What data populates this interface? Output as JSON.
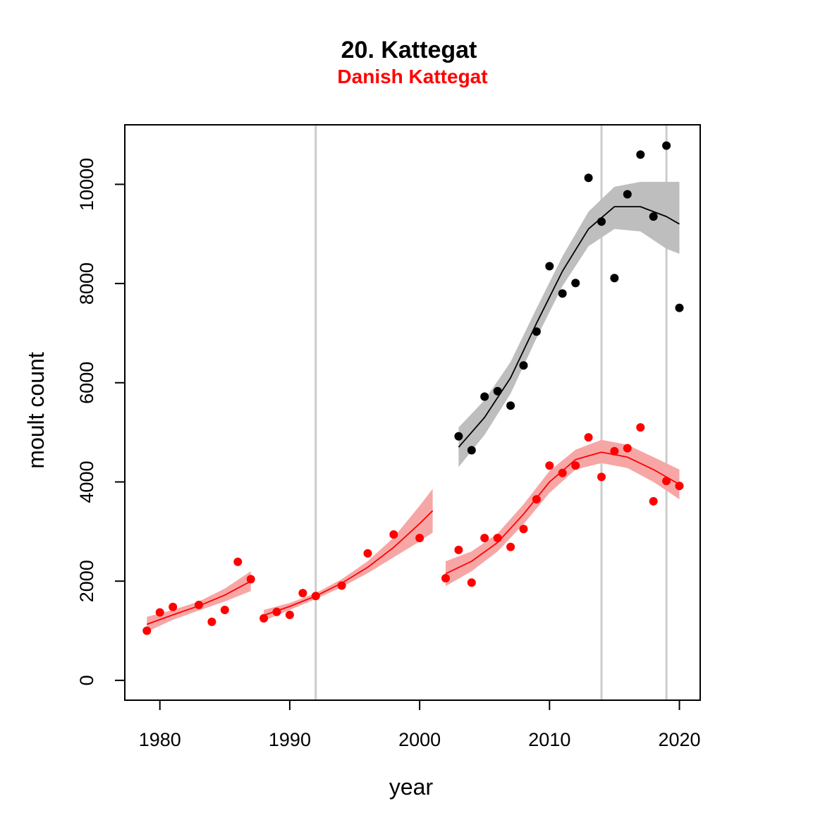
{
  "chart_data": {
    "type": "scatter",
    "title": "20. Kattegat",
    "subtitle": "Danish Kattegat",
    "xlabel": "year",
    "ylabel": "moult count",
    "xlim": [
      1977.3,
      2021.6
    ],
    "ylim": [
      -400,
      11200
    ],
    "x_ticks": [
      1980,
      1990,
      2000,
      2010,
      2020
    ],
    "y_ticks": [
      0,
      2000,
      4000,
      6000,
      8000,
      10000
    ],
    "grid": false,
    "vlines": [
      1992,
      2014,
      2019
    ],
    "colors": {
      "total": "#000000",
      "total_band": "#bebebe",
      "danish": "#ff0000",
      "danish_band": "#f7a6a6",
      "subtitle": "#ff0000",
      "vline": "#cccccc"
    },
    "series": [
      {
        "key": "total",
        "color": "#000000",
        "points": [
          [
            2003,
            4920
          ],
          [
            2004,
            4640
          ],
          [
            2005,
            5720
          ],
          [
            2006,
            5830
          ],
          [
            2007,
            5540
          ],
          [
            2008,
            6350
          ],
          [
            2009,
            7030
          ],
          [
            2010,
            8350
          ],
          [
            2011,
            7800
          ],
          [
            2012,
            8010
          ],
          [
            2013,
            10130
          ],
          [
            2014,
            9250
          ],
          [
            2015,
            8110
          ],
          [
            2016,
            9800
          ],
          [
            2017,
            10600
          ],
          [
            2018,
            9350
          ],
          [
            2019,
            10780
          ],
          [
            2020,
            7510
          ]
        ],
        "fit_segments": [
          {
            "x": [
              2003,
              2005,
              2007,
              2009,
              2011,
              2013,
              2015,
              2017,
              2019,
              2020
            ],
            "y": [
              4700,
              5300,
              6100,
              7200,
              8250,
              9100,
              9550,
              9550,
              9350,
              9200
            ],
            "lower": [
              4300,
              4950,
              5780,
              6900,
              7950,
              8750,
              9100,
              9050,
              8700,
              8600
            ],
            "upper": [
              5100,
              5650,
              6420,
              7500,
              8550,
              9450,
              9950,
              10050,
              10050,
              10050
            ]
          }
        ]
      },
      {
        "key": "danish",
        "color": "#ff0000",
        "points": [
          [
            1979,
            1000
          ],
          [
            1980,
            1370
          ],
          [
            1981,
            1480
          ],
          [
            1983,
            1520
          ],
          [
            1984,
            1180
          ],
          [
            1985,
            1420
          ],
          [
            1986,
            2390
          ],
          [
            1987,
            2040
          ],
          [
            1988,
            1250
          ],
          [
            1989,
            1380
          ],
          [
            1990,
            1320
          ],
          [
            1991,
            1760
          ],
          [
            1992,
            1700
          ],
          [
            1994,
            1910
          ],
          [
            1996,
            2560
          ],
          [
            1998,
            2940
          ],
          [
            2000,
            2870
          ],
          [
            2002,
            2060
          ],
          [
            2003,
            2630
          ],
          [
            2004,
            1970
          ],
          [
            2005,
            2870
          ],
          [
            2006,
            2870
          ],
          [
            2007,
            2690
          ],
          [
            2008,
            3050
          ],
          [
            2009,
            3650
          ],
          [
            2010,
            4330
          ],
          [
            2011,
            4180
          ],
          [
            2012,
            4330
          ],
          [
            2013,
            4900
          ],
          [
            2014,
            4100
          ],
          [
            2015,
            4620
          ],
          [
            2016,
            4680
          ],
          [
            2017,
            5100
          ],
          [
            2018,
            3610
          ],
          [
            2019,
            4020
          ],
          [
            2020,
            3920
          ]
        ],
        "fit_segments": [
          {
            "x": [
              1979,
              1981,
              1983,
              1985,
              1987
            ],
            "y": [
              1130,
              1320,
              1500,
              1720,
              2000
            ],
            "lower": [
              980,
              1220,
              1410,
              1590,
              1800
            ],
            "upper": [
              1280,
              1420,
              1590,
              1850,
              2200
            ]
          },
          {
            "x": [
              1988,
              1990,
              1992,
              1994,
              1996,
              1998,
              2000,
              2001
            ],
            "y": [
              1310,
              1490,
              1700,
              1960,
              2280,
              2680,
              3160,
              3420
            ],
            "lower": [
              1200,
              1420,
              1640,
              1880,
              2160,
              2480,
              2800,
              2980
            ],
            "upper": [
              1420,
              1560,
              1760,
              2040,
              2400,
              2880,
              3520,
              3860
            ]
          },
          {
            "x": [
              2002,
              2004,
              2006,
              2008,
              2010,
              2012,
              2014,
              2016,
              2018,
              2020
            ],
            "y": [
              2150,
              2400,
              2780,
              3350,
              4000,
              4450,
              4600,
              4500,
              4250,
              3950
            ],
            "lower": [
              1900,
              2200,
              2600,
              3150,
              3780,
              4250,
              4380,
              4280,
              4000,
              3650
            ],
            "upper": [
              2400,
              2600,
              2960,
              3550,
              4220,
              4650,
              4850,
              4750,
              4500,
              4250
            ]
          }
        ]
      }
    ]
  }
}
